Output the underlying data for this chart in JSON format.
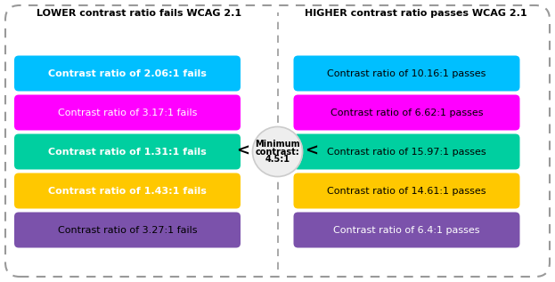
{
  "title_left": "LOWER contrast ratio fails WCAG 2.1",
  "title_right": "HIGHER contrast ratio passes WCAG 2.1",
  "left_bars": [
    {
      "text": "Contrast ratio of 2.06:1 fails",
      "bg": "#00BFFF",
      "fg": "#FFFFFF",
      "bold": true
    },
    {
      "text": "Contrast ratio of 3.17:1 fails",
      "bg": "#FF00FF",
      "fg": "#FFFFFF",
      "bold": false
    },
    {
      "text": "Contrast ratio of 1.31:1 fails",
      "bg": "#00CFA0",
      "fg": "#FFFFFF",
      "bold": true
    },
    {
      "text": "Contrast ratio of 1.43:1 fails",
      "bg": "#FFC800",
      "fg": "#FFFFFF",
      "bold": true
    },
    {
      "text": "Contrast ratio of 3.27:1 fails",
      "bg": "#7B52AB",
      "fg": "#000000",
      "bold": false
    }
  ],
  "right_bars": [
    {
      "text": "Contrast ratio of 10.16:1 passes",
      "bg": "#00BFFF",
      "fg": "#000000",
      "bold": false
    },
    {
      "text": "Contrast ratio of 6.62:1 passes",
      "bg": "#FF00FF",
      "fg": "#000000",
      "bold": false
    },
    {
      "text": "Contrast ratio of 15.97:1 passes",
      "bg": "#00CFA0",
      "fg": "#000000",
      "bold": false
    },
    {
      "text": "Contrast ratio of 14.61:1 passes",
      "bg": "#FFC800",
      "fg": "#000000",
      "bold": false
    },
    {
      "text": "Contrast ratio of 6.4:1 passes",
      "bg": "#7B52AB",
      "fg": "#FFFFFF",
      "bold": false
    }
  ],
  "center_text_line1": "Minimum",
  "center_text_line2": "contrast:",
  "center_text_line3": "4.5:1",
  "bg_color": "#FFFFFF",
  "outer_border_color": "#999999",
  "divider_color": "#999999",
  "fig_width": 6.23,
  "fig_height": 3.17,
  "dpi": 100
}
